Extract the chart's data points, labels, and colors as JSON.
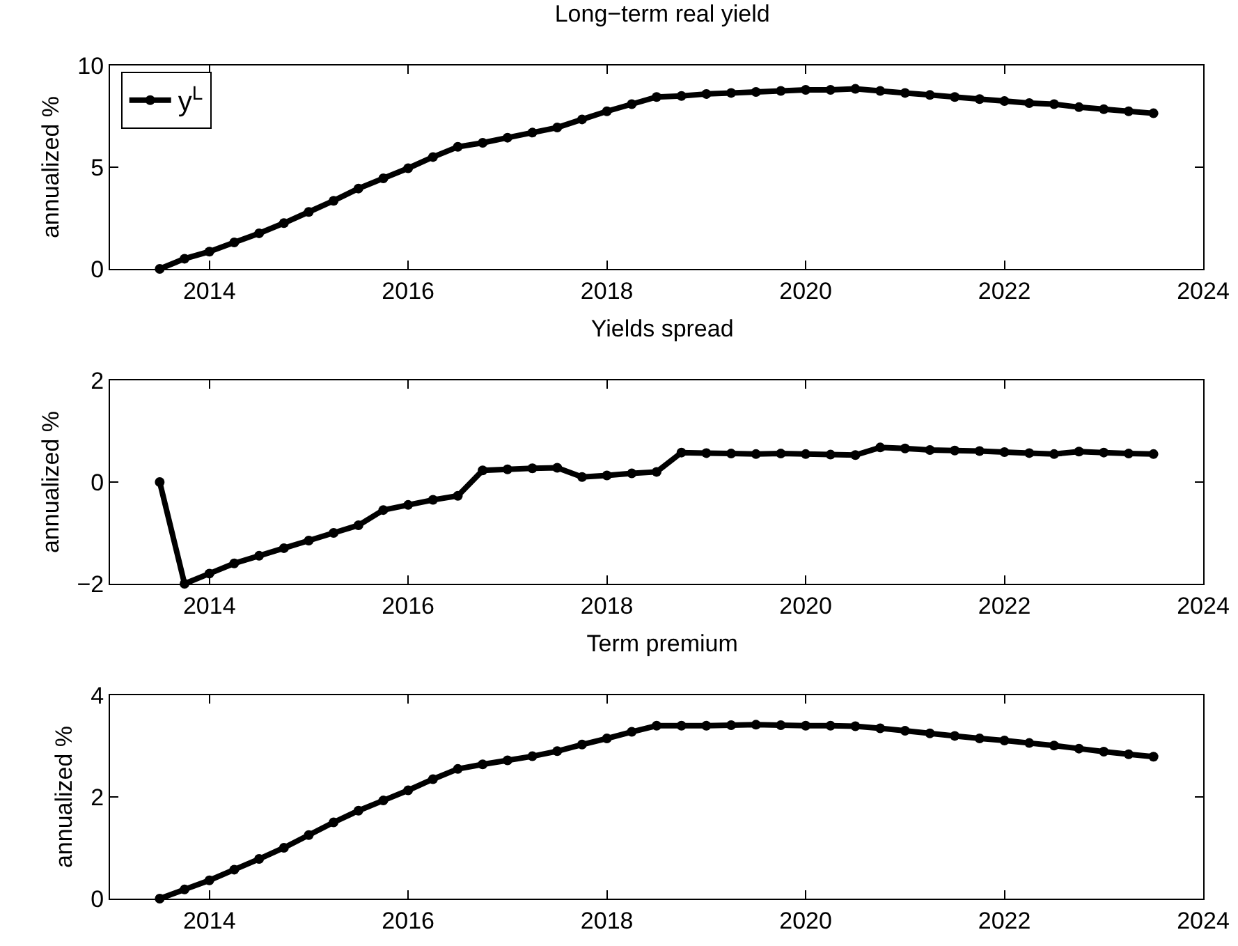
{
  "chart_data": [
    {
      "type": "line",
      "title": "Long−term real yield",
      "ylabel": "annualized %",
      "x": [
        2013.5,
        2013.75,
        2014,
        2014.25,
        2014.5,
        2014.75,
        2015,
        2015.25,
        2015.5,
        2015.75,
        2016,
        2016.25,
        2016.5,
        2016.75,
        2017,
        2017.25,
        2017.5,
        2017.75,
        2018,
        2018.25,
        2018.5,
        2018.75,
        2019,
        2019.25,
        2019.5,
        2019.75,
        2020,
        2020.25,
        2020.5,
        2020.75,
        2021,
        2021.25,
        2021.5,
        2021.75,
        2022,
        2022.25,
        2022.5,
        2022.75,
        2023,
        2023.25,
        2023.5
      ],
      "series": [
        {
          "name": "y$^{L}$",
          "color": "#000000",
          "values": [
            0,
            0.5,
            0.85,
            1.3,
            1.75,
            2.25,
            2.8,
            3.35,
            3.95,
            4.45,
            4.95,
            5.5,
            6.0,
            6.2,
            6.45,
            6.7,
            6.95,
            7.35,
            7.75,
            8.1,
            8.45,
            8.5,
            8.6,
            8.65,
            8.7,
            8.75,
            8.8,
            8.8,
            8.85,
            8.75,
            8.65,
            8.55,
            8.45,
            8.35,
            8.25,
            8.15,
            8.1,
            7.95,
            7.85,
            7.75,
            7.65
          ]
        }
      ],
      "xlim": [
        2013,
        2024
      ],
      "xticks": [
        2014,
        2016,
        2018,
        2020,
        2022,
        2024
      ],
      "ylim": [
        0,
        10
      ],
      "yticks": [
        0,
        5,
        10
      ],
      "marker": "circle",
      "line_style": "solid",
      "grid": false,
      "legend": "top left"
    },
    {
      "type": "line",
      "title": "Yields spread",
      "ylabel": "annualized %",
      "x": [
        2013.5,
        2013.75,
        2014,
        2014.25,
        2014.5,
        2014.75,
        2015,
        2015.25,
        2015.5,
        2015.75,
        2016,
        2016.25,
        2016.5,
        2016.75,
        2017,
        2017.25,
        2017.5,
        2017.75,
        2018,
        2018.25,
        2018.5,
        2018.75,
        2019,
        2019.25,
        2019.5,
        2019.75,
        2020,
        2020.25,
        2020.5,
        2020.75,
        2021,
        2021.25,
        2021.5,
        2021.75,
        2022,
        2022.25,
        2022.5,
        2022.75,
        2023,
        2023.25,
        2023.5
      ],
      "series": [
        {
          "color": "#000000",
          "values": [
            0,
            -2,
            -1.8,
            -1.6,
            -1.45,
            -1.3,
            -1.15,
            -1.0,
            -0.85,
            -0.55,
            -0.45,
            -0.35,
            -0.27,
            0.23,
            0.25,
            0.27,
            0.28,
            0.1,
            0.13,
            0.17,
            0.2,
            0.58,
            0.57,
            0.56,
            0.55,
            0.56,
            0.55,
            0.54,
            0.53,
            0.68,
            0.66,
            0.63,
            0.62,
            0.61,
            0.59,
            0.57,
            0.55,
            0.6,
            0.58,
            0.56,
            0.55
          ]
        }
      ],
      "xlim": [
        2013,
        2024
      ],
      "xticks": [
        2014,
        2016,
        2018,
        2020,
        2022,
        2024
      ],
      "ylim": [
        -2,
        2
      ],
      "yticks": [
        {
          "value": -2,
          "label": "−2"
        },
        0,
        2
      ],
      "marker": "circle",
      "line_style": "solid",
      "grid": false
    },
    {
      "type": "line",
      "title": "Term premium",
      "ylabel": "annualized %",
      "x": [
        2013.5,
        2013.75,
        2014,
        2014.25,
        2014.5,
        2014.75,
        2015,
        2015.25,
        2015.5,
        2015.75,
        2016,
        2016.25,
        2016.5,
        2016.75,
        2017,
        2017.25,
        2017.5,
        2017.75,
        2018,
        2018.25,
        2018.5,
        2018.75,
        2019,
        2019.25,
        2019.5,
        2019.75,
        2020,
        2020.25,
        2020.5,
        2020.75,
        2021,
        2021.25,
        2021.5,
        2021.75,
        2022,
        2022.25,
        2022.5,
        2022.75,
        2023,
        2023.25,
        2023.5
      ],
      "series": [
        {
          "color": "#000000",
          "values": [
            0,
            0.18,
            0.36,
            0.57,
            0.78,
            1.0,
            1.25,
            1.5,
            1.73,
            1.93,
            2.13,
            2.35,
            2.55,
            2.64,
            2.72,
            2.8,
            2.9,
            3.03,
            3.15,
            3.28,
            3.4,
            3.4,
            3.4,
            3.41,
            3.42,
            3.41,
            3.4,
            3.4,
            3.39,
            3.35,
            3.3,
            3.25,
            3.2,
            3.15,
            3.11,
            3.06,
            3.01,
            2.95,
            2.89,
            2.84,
            2.79
          ]
        }
      ],
      "xlim": [
        2013,
        2024
      ],
      "xticks": [
        2014,
        2016,
        2018,
        2020,
        2022,
        2024
      ],
      "ylim": [
        0,
        4
      ],
      "yticks": [
        0,
        2,
        4
      ],
      "marker": "circle",
      "line_style": "solid",
      "grid": false
    }
  ]
}
